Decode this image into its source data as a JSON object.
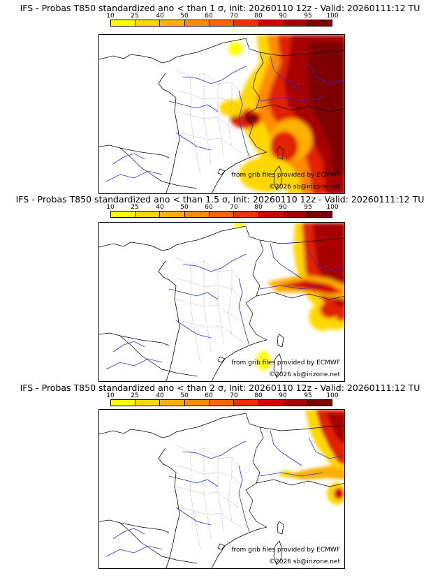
{
  "colorbar": {
    "ticks": [
      "10",
      "25",
      "40",
      "50",
      "60",
      "70",
      "80",
      "90",
      "95",
      "100"
    ],
    "colors": [
      "#ffff00",
      "#ffd700",
      "#ffb000",
      "#ff8c00",
      "#ff6400",
      "#f03000",
      "#d40000",
      "#a80000",
      "#7e0000"
    ]
  },
  "panels": [
    {
      "title": "IFS - Probas T850  standardized ano < than 1 σ, Init: 20260110 12z - Valid: 20260111:12 TU",
      "credit_grib": "from grib files provided by ECMWF",
      "credit_copy": "©2026 sb@irizone.net"
    },
    {
      "title": "IFS - Probas T850  standardized ano < than 1.5 σ, Init: 20260110 12z - Valid: 20260111:12 TU",
      "credit_grib": "from grib files provided by ECMWF",
      "credit_copy": "©2026 sb@irizone.net"
    },
    {
      "title": "IFS - Probas T850  standardized ano < than 2 σ, Init: 20260110 12z - Valid: 20260111:12 TU",
      "credit_grib": "from grib files provided by ECMWF",
      "credit_copy": "©2026 sb@irizone.net"
    }
  ]
}
